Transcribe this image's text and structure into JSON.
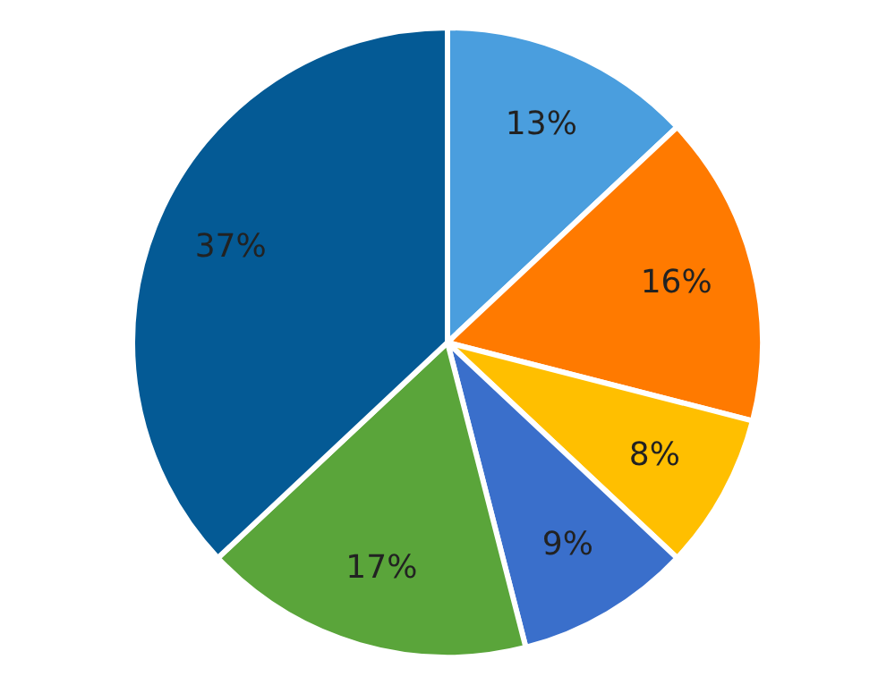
{
  "chart_data": {
    "type": "pie",
    "categories": [
      null,
      null,
      null,
      null,
      null,
      null
    ],
    "values": [
      13,
      16,
      8,
      9,
      17,
      37
    ],
    "colors": [
      "#4a9ede",
      "#ff7a00",
      "#ffbf00",
      "#3a6fcb",
      "#5aa53a",
      "#045a95"
    ],
    "value_labels": [
      "13%",
      "16%",
      "8%",
      "9%",
      "17%",
      "37%"
    ]
  }
}
